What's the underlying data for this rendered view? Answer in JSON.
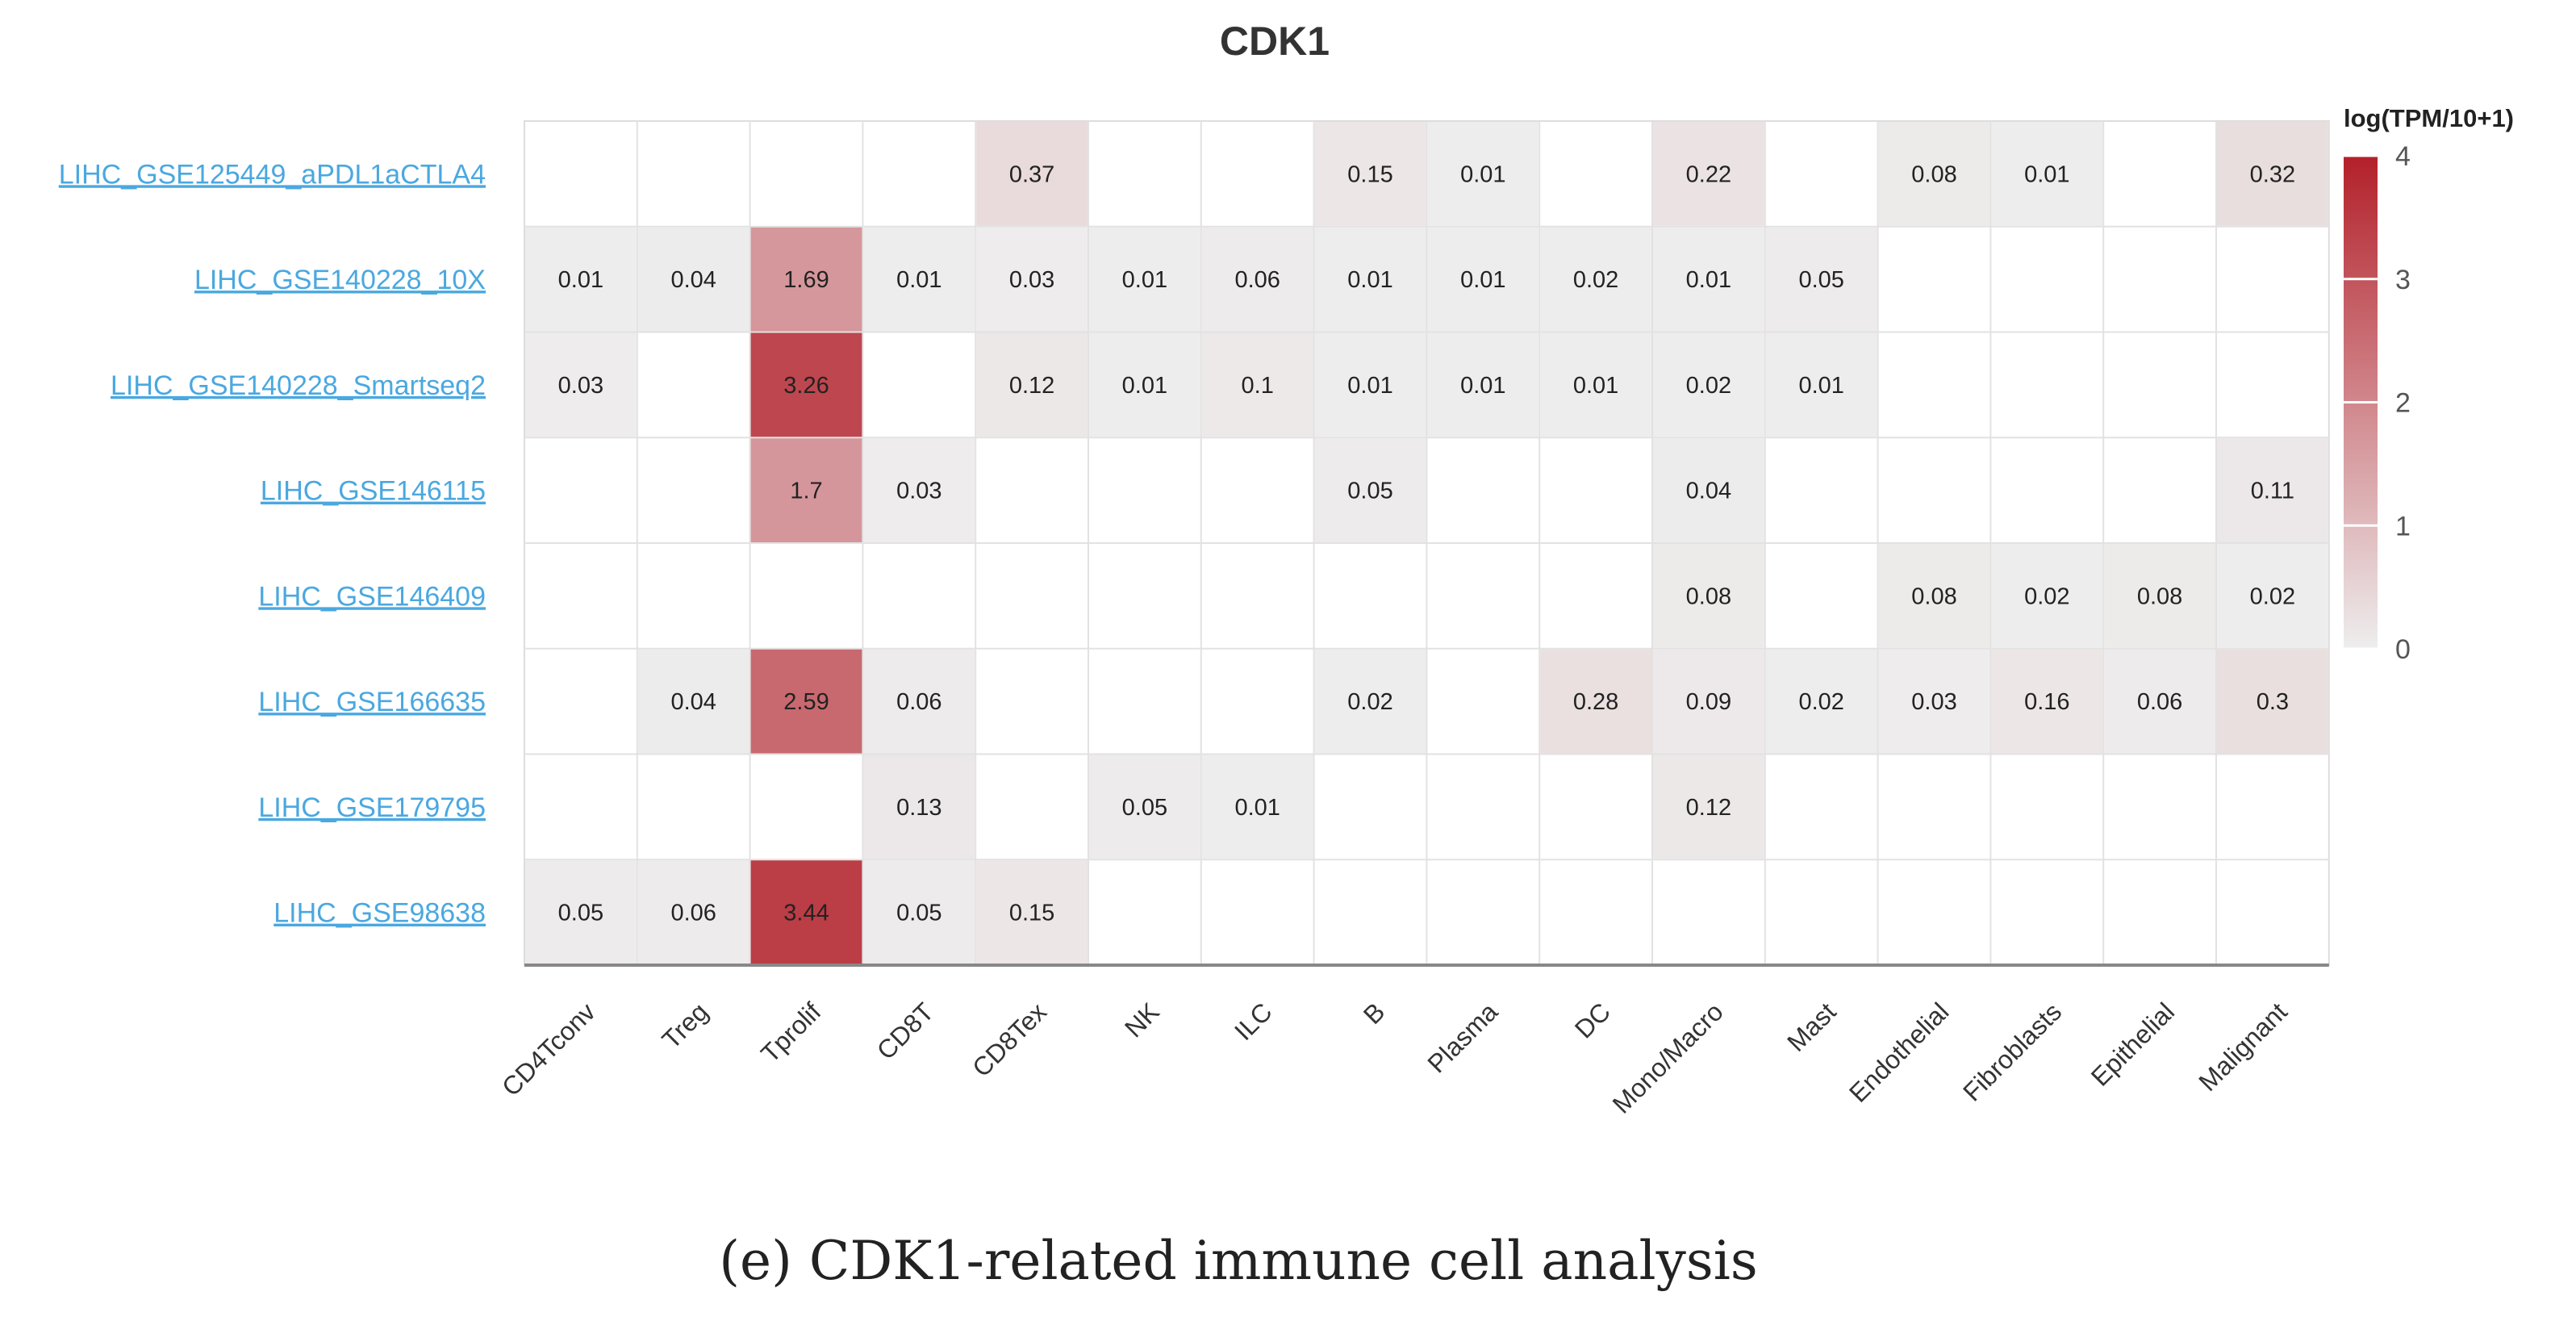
{
  "chart_data": {
    "type": "heatmap",
    "title": "CDK1",
    "rows": [
      "LIHC_GSE125449_aPDL1aCTLA4",
      "LIHC_GSE140228_10X",
      "LIHC_GSE140228_Smartseq2",
      "LIHC_GSE146115",
      "LIHC_GSE146409",
      "LIHC_GSE166635",
      "LIHC_GSE179795",
      "LIHC_GSE98638"
    ],
    "columns": [
      "CD4Tconv",
      "Treg",
      "Tprolif",
      "CD8T",
      "CD8Tex",
      "NK",
      "ILC",
      "B",
      "Plasma",
      "DC",
      "Mono/Macro",
      "Mast",
      "Endothelial",
      "Fibroblasts",
      "Epithelial",
      "Malignant"
    ],
    "values": [
      [
        null,
        null,
        null,
        null,
        0.37,
        null,
        null,
        0.15,
        0.01,
        null,
        0.22,
        null,
        0.08,
        0.01,
        null,
        0.32
      ],
      [
        0.01,
        0.04,
        1.69,
        0.01,
        0.03,
        0.01,
        0.06,
        0.01,
        0.01,
        0.02,
        0.01,
        0.05,
        null,
        null,
        null,
        null
      ],
      [
        0.03,
        null,
        3.26,
        null,
        0.12,
        0.01,
        0.1,
        0.01,
        0.01,
        0.01,
        0.02,
        0.01,
        null,
        null,
        null,
        null
      ],
      [
        null,
        null,
        1.7,
        0.03,
        null,
        null,
        null,
        0.05,
        null,
        null,
        0.04,
        null,
        null,
        null,
        null,
        0.11
      ],
      [
        null,
        null,
        null,
        null,
        null,
        null,
        null,
        null,
        null,
        null,
        0.08,
        null,
        0.08,
        0.02,
        0.08,
        0.02
      ],
      [
        null,
        0.04,
        2.59,
        0.06,
        null,
        null,
        null,
        0.02,
        null,
        0.28,
        0.09,
        0.02,
        0.03,
        0.16,
        0.06,
        0.3
      ],
      [
        null,
        null,
        null,
        0.13,
        null,
        0.05,
        0.01,
        null,
        null,
        null,
        0.12,
        null,
        null,
        null,
        null,
        null
      ],
      [
        0.05,
        0.06,
        3.44,
        0.05,
        0.15,
        null,
        null,
        null,
        null,
        null,
        null,
        null,
        null,
        null,
        null,
        null
      ]
    ],
    "legend": {
      "title": "log(TPM/10+1)",
      "range": [
        0,
        4
      ],
      "ticks": [
        "0",
        "1",
        "2",
        "3",
        "4"
      ],
      "low_color": "#eeeeee",
      "high_color": "#b3202a",
      "position": "right"
    }
  },
  "caption": "(e) CDK1-related immune cell analysis"
}
